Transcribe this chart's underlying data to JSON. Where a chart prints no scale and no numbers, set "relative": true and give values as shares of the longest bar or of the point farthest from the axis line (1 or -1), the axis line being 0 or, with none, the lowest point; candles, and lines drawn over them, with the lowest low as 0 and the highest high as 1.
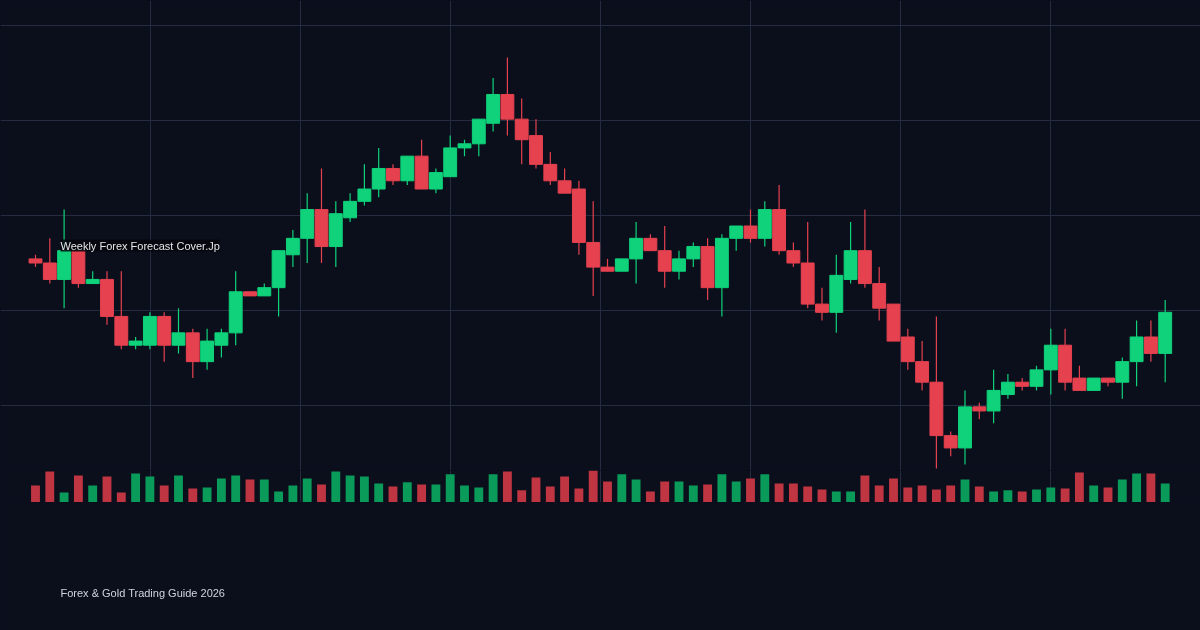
{
  "chart_data": [
    {
      "type": "candlestick",
      "relative": true,
      "grid": true,
      "title": "Weekly Forex Forecast Cover.Jp",
      "annotations": [
        "Forex & Gold Trading Guide 2026"
      ],
      "categories": [
        null,
        null,
        null,
        null,
        null,
        null,
        null,
        null,
        null,
        null,
        null,
        null,
        null,
        null,
        null,
        null,
        null,
        null,
        null,
        null,
        null,
        null,
        null,
        null,
        null,
        null,
        null,
        null,
        null,
        null,
        null,
        null,
        null,
        null,
        null,
        null,
        null,
        null,
        null,
        null,
        null,
        null,
        null,
        null,
        null,
        null,
        null,
        null,
        null,
        null,
        null,
        null,
        null,
        null,
        null,
        null,
        null,
        null,
        null,
        null,
        null,
        null,
        null,
        null,
        null,
        null,
        null,
        null,
        null,
        null,
        null,
        null,
        null,
        null,
        null,
        null,
        null,
        null,
        null,
        null
      ],
      "ohlc": [
        [
          0.51,
          0.52,
          0.49,
          0.5
        ],
        [
          0.5,
          0.56,
          0.45,
          0.46
        ],
        [
          0.46,
          0.63,
          0.39,
          0.53
        ],
        [
          0.53,
          0.53,
          0.44,
          0.45
        ],
        [
          0.45,
          0.48,
          0.45,
          0.46
        ],
        [
          0.46,
          0.48,
          0.35,
          0.37
        ],
        [
          0.37,
          0.48,
          0.29,
          0.3
        ],
        [
          0.3,
          0.32,
          0.29,
          0.31
        ],
        [
          0.3,
          0.38,
          0.29,
          0.37
        ],
        [
          0.37,
          0.38,
          0.26,
          0.3
        ],
        [
          0.3,
          0.39,
          0.28,
          0.33
        ],
        [
          0.33,
          0.34,
          0.22,
          0.26
        ],
        [
          0.26,
          0.34,
          0.24,
          0.31
        ],
        [
          0.3,
          0.34,
          0.27,
          0.33
        ],
        [
          0.33,
          0.48,
          0.3,
          0.43
        ],
        [
          0.43,
          0.43,
          0.42,
          0.42
        ],
        [
          0.42,
          0.45,
          0.42,
          0.44
        ],
        [
          0.44,
          0.53,
          0.37,
          0.53
        ],
        [
          0.52,
          0.58,
          0.49,
          0.56
        ],
        [
          0.56,
          0.67,
          0.5,
          0.63
        ],
        [
          0.63,
          0.73,
          0.5,
          0.54
        ],
        [
          0.54,
          0.65,
          0.49,
          0.62
        ],
        [
          0.61,
          0.67,
          0.6,
          0.65
        ],
        [
          0.65,
          0.74,
          0.64,
          0.68
        ],
        [
          0.68,
          0.78,
          0.66,
          0.73
        ],
        [
          0.73,
          0.74,
          0.69,
          0.7
        ],
        [
          0.7,
          0.76,
          0.69,
          0.76
        ],
        [
          0.76,
          0.8,
          0.68,
          0.68
        ],
        [
          0.68,
          0.73,
          0.67,
          0.72
        ],
        [
          0.71,
          0.81,
          0.71,
          0.78
        ],
        [
          0.78,
          0.8,
          0.76,
          0.79
        ],
        [
          0.79,
          0.85,
          0.76,
          0.85
        ],
        [
          0.84,
          0.95,
          0.82,
          0.91
        ],
        [
          0.91,
          1.0,
          0.81,
          0.85
        ],
        [
          0.85,
          0.9,
          0.74,
          0.8
        ],
        [
          0.81,
          0.85,
          0.73,
          0.74
        ],
        [
          0.74,
          0.77,
          0.69,
          0.7
        ],
        [
          0.7,
          0.73,
          0.67,
          0.67
        ],
        [
          0.68,
          0.7,
          0.52,
          0.55
        ],
        [
          0.55,
          0.65,
          0.42,
          0.49
        ],
        [
          0.49,
          0.51,
          0.48,
          0.48
        ],
        [
          0.48,
          0.51,
          0.48,
          0.51
        ],
        [
          0.51,
          0.6,
          0.45,
          0.56
        ],
        [
          0.56,
          0.57,
          0.53,
          0.53
        ],
        [
          0.53,
          0.59,
          0.44,
          0.48
        ],
        [
          0.48,
          0.53,
          0.46,
          0.51
        ],
        [
          0.51,
          0.55,
          0.49,
          0.54
        ],
        [
          0.54,
          0.56,
          0.41,
          0.44
        ],
        [
          0.44,
          0.57,
          0.37,
          0.56
        ],
        [
          0.56,
          0.59,
          0.53,
          0.59
        ],
        [
          0.59,
          0.63,
          0.55,
          0.56
        ],
        [
          0.56,
          0.65,
          0.54,
          0.63
        ],
        [
          0.63,
          0.69,
          0.52,
          0.53
        ],
        [
          0.53,
          0.55,
          0.49,
          0.5
        ],
        [
          0.5,
          0.6,
          0.39,
          0.4
        ],
        [
          0.4,
          0.44,
          0.36,
          0.38
        ],
        [
          0.38,
          0.52,
          0.33,
          0.47
        ],
        [
          0.46,
          0.6,
          0.45,
          0.53
        ],
        [
          0.53,
          0.63,
          0.44,
          0.45
        ],
        [
          0.45,
          0.49,
          0.36,
          0.39
        ],
        [
          0.4,
          0.4,
          0.31,
          0.31
        ],
        [
          0.32,
          0.34,
          0.24,
          0.26
        ],
        [
          0.26,
          0.31,
          0.19,
          0.21
        ],
        [
          0.21,
          0.37,
          0.0,
          0.08
        ],
        [
          0.08,
          0.09,
          0.03,
          0.05
        ],
        [
          0.05,
          0.19,
          0.01,
          0.15
        ],
        [
          0.15,
          0.16,
          0.12,
          0.14
        ],
        [
          0.14,
          0.24,
          0.11,
          0.19
        ],
        [
          0.18,
          0.23,
          0.17,
          0.21
        ],
        [
          0.21,
          0.22,
          0.19,
          0.2
        ],
        [
          0.2,
          0.25,
          0.19,
          0.24
        ],
        [
          0.24,
          0.34,
          0.18,
          0.3
        ],
        [
          0.3,
          0.34,
          0.19,
          0.21
        ],
        [
          0.22,
          0.25,
          0.19,
          0.19
        ],
        [
          0.19,
          0.22,
          0.19,
          0.22
        ],
        [
          0.22,
          0.22,
          0.2,
          0.21
        ],
        [
          0.21,
          0.27,
          0.17,
          0.26
        ],
        [
          0.26,
          0.36,
          0.2,
          0.32
        ],
        [
          0.32,
          0.36,
          0.26,
          0.28
        ],
        [
          0.28,
          0.41,
          0.21,
          0.38
        ]
      ],
      "colors": [
        "#e5414f",
        "#e5414f",
        "#0fd27a",
        "#e5414f",
        "#0fd27a",
        "#e5414f",
        "#e5414f",
        "#0fd27a",
        "#0fd27a",
        "#e5414f",
        "#0fd27a",
        "#e5414f",
        "#0fd27a",
        "#0fd27a",
        "#0fd27a",
        "#e5414f",
        "#0fd27a",
        "#0fd27a",
        "#0fd27a",
        "#0fd27a",
        "#e5414f",
        "#0fd27a",
        "#0fd27a",
        "#0fd27a",
        "#0fd27a",
        "#e5414f",
        "#0fd27a",
        "#e5414f",
        "#0fd27a",
        "#0fd27a",
        "#0fd27a",
        "#0fd27a",
        "#0fd27a",
        "#e5414f",
        "#e5414f",
        "#e5414f",
        "#e5414f",
        "#e5414f",
        "#e5414f",
        "#e5414f",
        "#e5414f",
        "#0fd27a",
        "#0fd27a",
        "#e5414f",
        "#e5414f",
        "#0fd27a",
        "#0fd27a",
        "#e5414f",
        "#0fd27a",
        "#0fd27a",
        "#e5414f",
        "#0fd27a",
        "#e5414f",
        "#e5414f",
        "#e5414f",
        "#e5414f",
        "#0fd27a",
        "#0fd27a",
        "#e5414f",
        "#e5414f",
        "#e5414f",
        "#e5414f",
        "#e5414f",
        "#e5414f",
        "#e5414f",
        "#0fd27a",
        "#e5414f",
        "#0fd27a",
        "#0fd27a",
        "#e5414f",
        "#0fd27a",
        "#0fd27a",
        "#e5414f",
        "#e5414f",
        "#0fd27a",
        "#e5414f",
        "#0fd27a",
        "#0fd27a",
        "#e5414f",
        "#0fd27a"
      ]
    },
    {
      "type": "bar",
      "relative": true,
      "grid": "x",
      "categories": [
        null,
        null,
        null,
        null,
        null,
        null,
        null,
        null,
        null,
        null,
        null,
        null,
        null,
        null,
        null,
        null,
        null,
        null,
        null,
        null,
        null,
        null,
        null,
        null,
        null,
        null,
        null,
        null,
        null,
        null,
        null,
        null,
        null,
        null,
        null,
        null,
        null,
        null,
        null,
        null,
        null,
        null,
        null,
        null,
        null,
        null,
        null,
        null,
        null,
        null,
        null,
        null,
        null,
        null,
        null,
        null,
        null,
        null,
        null,
        null,
        null,
        null,
        null,
        null,
        null,
        null,
        null,
        null,
        null,
        null,
        null,
        null,
        null,
        null,
        null,
        null,
        null,
        null,
        null,
        null
      ],
      "values": [
        0.53,
        0.97,
        0.31,
        0.84,
        0.53,
        0.81,
        0.31,
        0.91,
        0.81,
        0.53,
        0.84,
        0.44,
        0.47,
        0.75,
        0.84,
        0.72,
        0.72,
        0.34,
        0.53,
        0.75,
        0.56,
        0.97,
        0.84,
        0.81,
        0.59,
        0.5,
        0.63,
        0.56,
        0.56,
        0.88,
        0.53,
        0.47,
        0.88,
        0.97,
        0.38,
        0.78,
        0.5,
        0.81,
        0.44,
        1.0,
        0.66,
        0.88,
        0.72,
        0.34,
        0.66,
        0.66,
        0.53,
        0.56,
        0.88,
        0.66,
        0.75,
        0.88,
        0.59,
        0.59,
        0.5,
        0.41,
        0.34,
        0.34,
        0.84,
        0.53,
        0.75,
        0.47,
        0.53,
        0.41,
        0.53,
        0.72,
        0.5,
        0.34,
        0.38,
        0.34,
        0.41,
        0.47,
        0.44,
        0.94,
        0.53,
        0.47,
        0.72,
        0.91,
        0.91,
        0.59
      ],
      "colors": [
        "#bf3541",
        "#bf3541",
        "#0a9a5a",
        "#bf3541",
        "#0a9a5a",
        "#bf3541",
        "#bf3541",
        "#0a9a5a",
        "#0a9a5a",
        "#bf3541",
        "#0a9a5a",
        "#bf3541",
        "#0a9a5a",
        "#0a9a5a",
        "#0a9a5a",
        "#bf3541",
        "#0a9a5a",
        "#0a9a5a",
        "#0a9a5a",
        "#0a9a5a",
        "#bf3541",
        "#0a9a5a",
        "#0a9a5a",
        "#0a9a5a",
        "#0a9a5a",
        "#bf3541",
        "#0a9a5a",
        "#bf3541",
        "#0a9a5a",
        "#0a9a5a",
        "#0a9a5a",
        "#0a9a5a",
        "#0a9a5a",
        "#bf3541",
        "#bf3541",
        "#bf3541",
        "#bf3541",
        "#bf3541",
        "#bf3541",
        "#bf3541",
        "#bf3541",
        "#0a9a5a",
        "#0a9a5a",
        "#bf3541",
        "#bf3541",
        "#0a9a5a",
        "#0a9a5a",
        "#bf3541",
        "#0a9a5a",
        "#0a9a5a",
        "#bf3541",
        "#0a9a5a",
        "#bf3541",
        "#bf3541",
        "#bf3541",
        "#bf3541",
        "#0a9a5a",
        "#0a9a5a",
        "#bf3541",
        "#bf3541",
        "#bf3541",
        "#bf3541",
        "#bf3541",
        "#bf3541",
        "#bf3541",
        "#0a9a5a",
        "#bf3541",
        "#0a9a5a",
        "#0a9a5a",
        "#bf3541",
        "#0a9a5a",
        "#0a9a5a",
        "#bf3541",
        "#bf3541",
        "#0a9a5a",
        "#bf3541",
        "#0a9a5a",
        "#0a9a5a",
        "#bf3541",
        "#0a9a5a"
      ]
    }
  ]
}
